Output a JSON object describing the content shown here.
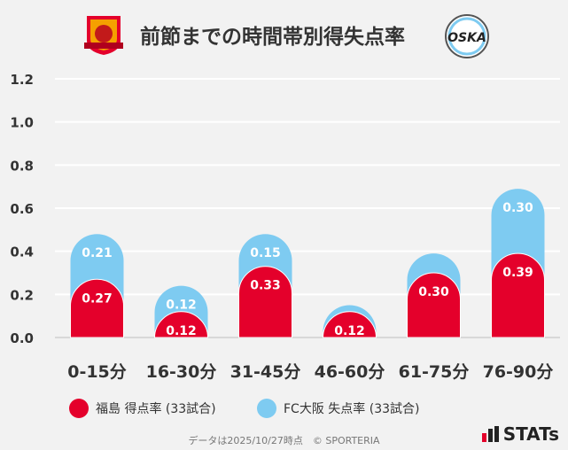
{
  "title": "前節までの時間帯別得失点率",
  "logos": {
    "left": "FUKUSHIMA UNITED FC",
    "right": "FC OSAKA"
  },
  "chart_data": {
    "type": "bar",
    "stacked": true,
    "categories": [
      "0-15分",
      "16-30分",
      "31-45分",
      "46-60分",
      "61-75分",
      "76-90分"
    ],
    "series": [
      {
        "name": "福島 得点率 (33試合)",
        "color": "#e4002b",
        "values": [
          0.27,
          0.12,
          0.33,
          0.12,
          0.3,
          0.39
        ],
        "labels": [
          "0.27",
          "0.12",
          "0.33",
          "0.12",
          "0.30",
          "0.39"
        ]
      },
      {
        "name": "FC大阪 失点率 (33試合)",
        "color": "#7ecbf1",
        "values": [
          0.21,
          0.12,
          0.15,
          0.03,
          0.09,
          0.3
        ],
        "labels": [
          "0.21",
          "0.12",
          "0.15",
          "",
          "",
          "0.30"
        ]
      }
    ],
    "ylim": [
      0,
      1.2
    ],
    "yticks": [
      "0.0",
      "0.2",
      "0.4",
      "0.6",
      "0.8",
      "1.0",
      "1.2"
    ],
    "grid": true,
    "legend": "bottom"
  },
  "footer": "データは2025/10/27時点　© SPORTERIA",
  "brand": "STATs"
}
